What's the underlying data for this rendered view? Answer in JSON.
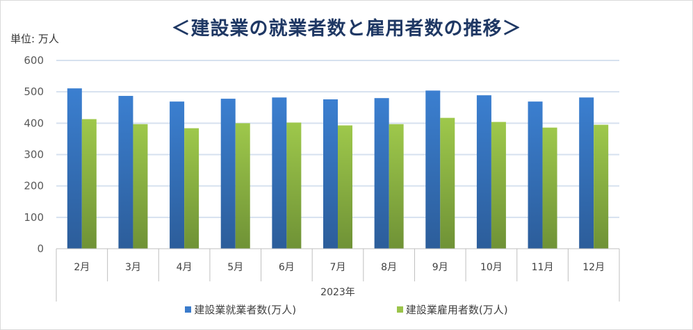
{
  "title": "＜建設業の就業者数と雇用者数の推移＞",
  "unit_label": "単位: 万人",
  "chart_data": {
    "type": "bar",
    "title": "＜建設業の就業者数と雇用者数の推移＞",
    "xlabel": "2023年",
    "ylabel": "単位: 万人",
    "ylim": [
      0,
      600
    ],
    "yticks": [
      0,
      100,
      200,
      300,
      400,
      500,
      600
    ],
    "categories": [
      "2月",
      "3月",
      "4月",
      "5月",
      "6月",
      "7月",
      "8月",
      "9月",
      "10月",
      "11月",
      "12月"
    ],
    "series": [
      {
        "name": "建設業就業者数(万人)",
        "color": "#3a7bcb",
        "values": [
          511,
          487,
          469,
          478,
          482,
          476,
          480,
          504,
          489,
          469,
          482
        ]
      },
      {
        "name": "建設業雇用者数(万人)",
        "color": "#9bc44a",
        "values": [
          413,
          397,
          384,
          400,
          402,
          393,
          397,
          417,
          404,
          386,
          395
        ]
      }
    ],
    "grid": true,
    "legend": "bottom"
  }
}
